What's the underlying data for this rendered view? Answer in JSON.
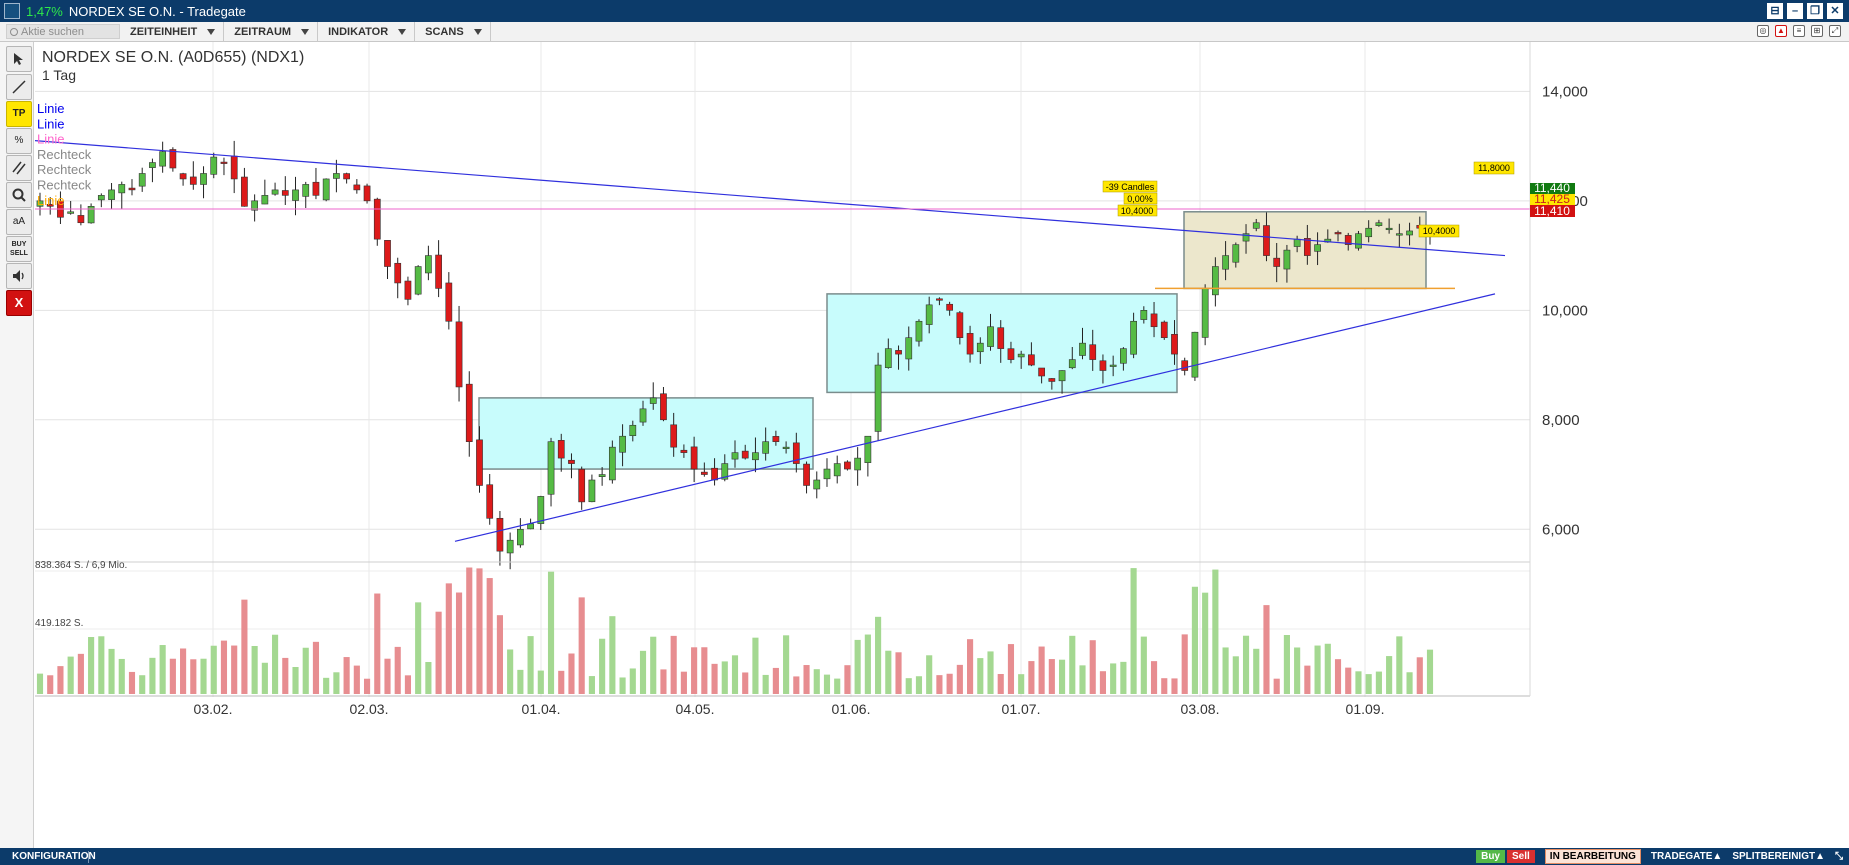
{
  "window": {
    "change_pct": "1,47%",
    "title": "NORDEX SE O.N. - Tradegate"
  },
  "toolbar": {
    "search_placeholder": "Aktie suchen",
    "menus": [
      "ZEITEINHEIT",
      "ZEITRAUM",
      "INDIKATOR",
      "SCANS"
    ]
  },
  "tools": [
    {
      "icon": "cursor-icon"
    },
    {
      "icon": "line-tool-icon"
    },
    {
      "label": "TP"
    },
    {
      "label": "%"
    },
    {
      "icon": "parallel-lines-icon"
    },
    {
      "icon": "zoom-icon"
    },
    {
      "label": "aA"
    },
    {
      "label": "BUY SELL"
    },
    {
      "icon": "speaker-icon"
    },
    {
      "label": "X"
    }
  ],
  "chart": {
    "instrument": "NORDEX SE O.N. (A0D655) (NDX1)",
    "timeframe": "1 Tag",
    "legend": [
      {
        "label": "Linie",
        "color": "#0000ee"
      },
      {
        "label": "Linie",
        "color": "#0000ee"
      },
      {
        "label": "Linie",
        "color": "#ff66cc"
      },
      {
        "label": "Rechteck",
        "color": "#888888"
      },
      {
        "label": "Rechteck",
        "color": "#888888"
      },
      {
        "label": "Rechteck",
        "color": "#888888"
      },
      {
        "label": "Linie",
        "color": "#ffaa00"
      }
    ],
    "price_ticks": [
      "14,000",
      "12,000",
      "10,000",
      "8,000",
      "6,000"
    ],
    "date_ticks": [
      "03.02.",
      "02.03.",
      "01.04.",
      "04.05.",
      "01.06.",
      "01.07.",
      "03.08.",
      "01.09."
    ],
    "volume_ticks": [
      "838.364 S. / 6,9 Mio.",
      "419.182 S."
    ],
    "price_labels": {
      "high": "11,440",
      "last": "11,425",
      "low": "11,410",
      "level_1": "11,8000",
      "level_2": "10,4000"
    },
    "annotation": {
      "candles": "-39 Candles",
      "pct": "0,00%",
      "price": "10,4000"
    }
  },
  "status": {
    "config": "KONFIGURATION",
    "buy": "Buy",
    "sell": "Sell",
    "edit": "IN BEARBEITUNG",
    "venue": "TRADEGATE▲",
    "split": "SPLITBEREINIGT▲"
  },
  "colors": {
    "up": "#55bb44",
    "down": "#dd1a1a",
    "vol_up": "#a4d891",
    "vol_down": "#e78d90",
    "rect_fill": "#c8fcfc",
    "rect3_fill": "#ece7cc",
    "trendline": "#3030dd",
    "pink_line": "#ee66cc",
    "orange_line": "#f0a030"
  },
  "chart_data": {
    "type": "candlestick",
    "title": "NORDEX SE O.N. (A0D655) (NDX1)",
    "interval": "1 Tag",
    "y_range": [
      5.0,
      14.5
    ],
    "price_ticks": [
      14.0,
      12.0,
      10.0,
      8.0,
      6.0
    ],
    "date_ticks": [
      "03.02.",
      "02.03.",
      "01.04.",
      "04.05.",
      "01.06.",
      "01.07.",
      "03.08.",
      "01.09."
    ],
    "last_price": 11.425,
    "bid_high": 11.44,
    "ask_low": 11.41,
    "closes": [
      12.0,
      11.9,
      11.7,
      11.8,
      11.6,
      11.9,
      12.1,
      12.2,
      12.3,
      12.2,
      12.5,
      12.7,
      12.9,
      12.6,
      12.4,
      12.3,
      12.5,
      12.8,
      12.7,
      12.4,
      11.9,
      12.0,
      12.1,
      12.2,
      12.1,
      12.2,
      12.3,
      12.1,
      12.4,
      12.5,
      12.4,
      12.2,
      12.0,
      11.3,
      10.8,
      10.5,
      10.2,
      10.8,
      11.0,
      10.4,
      9.8,
      8.6,
      7.6,
      6.8,
      6.2,
      5.6,
      5.8,
      6.0,
      6.1,
      6.6,
      7.6,
      7.3,
      7.2,
      6.5,
      6.9,
      7.0,
      7.5,
      7.7,
      7.9,
      8.2,
      8.4,
      8.0,
      7.5,
      7.4,
      7.1,
      7.0,
      6.9,
      7.2,
      7.4,
      7.3,
      7.4,
      7.6,
      7.6,
      7.5,
      7.2,
      6.8,
      6.9,
      7.1,
      7.2,
      7.1,
      7.3,
      7.7,
      9.0,
      9.3,
      9.2,
      9.5,
      9.8,
      10.1,
      10.2,
      10.0,
      9.5,
      9.2,
      9.4,
      9.7,
      9.3,
      9.1,
      9.2,
      9.0,
      8.8,
      8.7,
      8.9,
      9.1,
      9.4,
      9.1,
      8.9,
      9.0,
      9.3,
      9.8,
      10.0,
      9.7,
      9.5,
      9.2,
      8.9,
      9.6,
      10.4,
      10.8,
      11.0,
      11.2,
      11.4,
      11.6,
      11.0,
      10.8,
      11.1,
      11.3,
      11.0,
      11.2,
      11.3,
      11.4,
      11.2,
      11.4,
      11.5,
      11.6,
      11.5,
      11.4,
      11.45,
      11.5,
      11.43
    ],
    "volume_max": 838364,
    "volume_ticks": [
      838364,
      419182
    ],
    "rectangles": [
      {
        "from": "mid-03",
        "to": "mid-05",
        "price_low": 7.1,
        "price_high": 8.4
      },
      {
        "from": "end-05",
        "to": "end-07",
        "price_low": 8.5,
        "price_high": 10.3
      },
      {
        "from": "end-07",
        "to": "mid-09",
        "price_low": 10.4,
        "price_high": 11.8
      }
    ],
    "horizontal_lines": [
      11.8,
      10.4
    ]
  }
}
